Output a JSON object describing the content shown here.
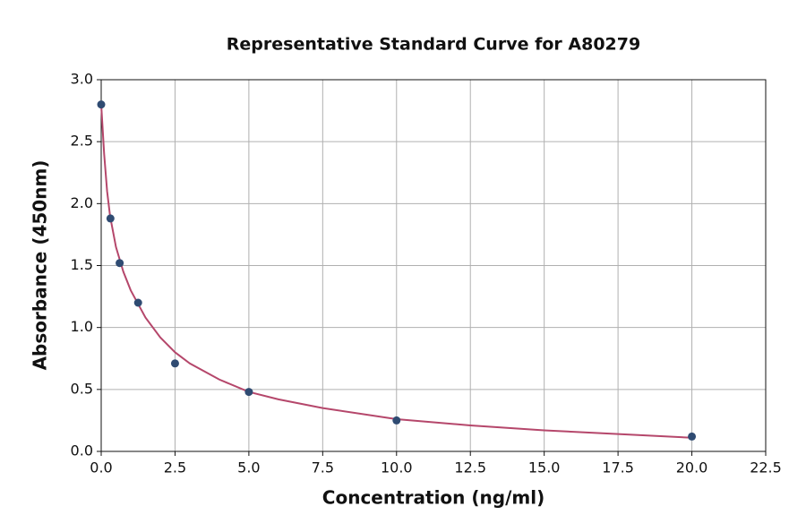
{
  "chart_data": {
    "type": "scatter",
    "title": "Representative Standard Curve for A80279",
    "x_label": "Concentration (ng/ml)",
    "y_label": "Absorbance (450nm)",
    "xlim": [
      0,
      22.5
    ],
    "ylim": [
      0,
      3.0
    ],
    "xticks": [
      {
        "value": 0,
        "label": "0.0"
      },
      2.5,
      {
        "value": 5,
        "label": "5.0"
      },
      7.5,
      {
        "value": 10,
        "label": "10.0"
      },
      12.5,
      {
        "value": 15,
        "label": "15.0"
      },
      17.5,
      {
        "value": 20,
        "label": "20.0"
      },
      22.5
    ],
    "yticks": [
      {
        "value": 0,
        "label": "0.0"
      },
      0.5,
      {
        "value": 1,
        "label": "1.0"
      },
      1.5,
      {
        "value": 2,
        "label": "2.0"
      },
      2.5,
      {
        "value": 3,
        "label": "3.0"
      }
    ],
    "grid": true,
    "series": [
      {
        "mode": "line",
        "color": "#b5476b",
        "x": [
          0,
          0.1,
          0.2,
          0.3,
          0.5,
          0.75,
          1,
          1.5,
          2,
          2.5,
          3,
          4,
          5,
          6,
          7.5,
          10,
          12.5,
          15,
          17.5,
          20
        ],
        "values": [
          2.8,
          2.4,
          2.1,
          1.9,
          1.65,
          1.45,
          1.3,
          1.08,
          0.92,
          0.8,
          0.71,
          0.58,
          0.48,
          0.42,
          0.35,
          0.26,
          0.21,
          0.17,
          0.14,
          0.11
        ]
      },
      {
        "mode": "markers",
        "color": "#2f4b72",
        "x": [
          0,
          0.3125,
          0.625,
          1.25,
          2.5,
          5,
          10,
          20
        ],
        "values": [
          2.8,
          1.88,
          1.52,
          1.2,
          0.71,
          0.48,
          0.25,
          0.12
        ]
      }
    ]
  }
}
